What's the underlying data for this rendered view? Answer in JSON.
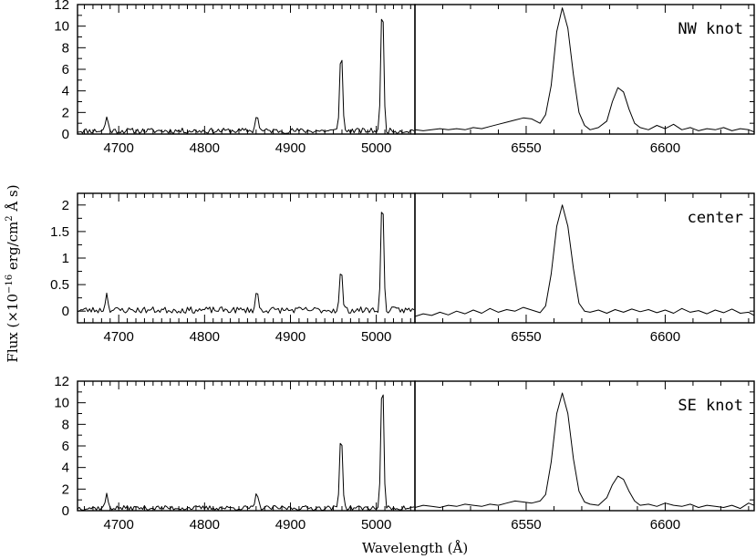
{
  "figure": {
    "xlabel": "Wavelength (Å)",
    "ylabel_prefix": "Flux (×10",
    "ylabel_exp": "−16",
    "ylabel_mid": " erg/cm",
    "ylabel_exp2": "2",
    "ylabel_suffix": " Å s)"
  },
  "chart_data": [
    {
      "type": "line",
      "region": "NW knot",
      "panel": "blue",
      "xlim": [
        4652,
        5045
      ],
      "ylim": [
        0,
        12
      ],
      "xticks": [
        4700,
        4800,
        4900,
        5000
      ],
      "yticks": [
        0,
        2,
        4,
        6,
        8,
        10,
        12
      ],
      "noise": 0.25,
      "baseline": 0.3,
      "seed": 11,
      "lines": [
        {
          "x": 4686,
          "y": 1.3
        },
        {
          "x": 4861,
          "y": 1.6
        },
        {
          "x": 4959,
          "y": 7.8
        },
        {
          "x": 5007,
          "y": 12.5
        }
      ]
    },
    {
      "type": "line",
      "region": "NW knot",
      "panel": "red",
      "label": "NW knot",
      "xlim": [
        6510,
        6632
      ],
      "ylim": [
        0,
        12
      ],
      "xticks": [
        6550,
        6600
      ],
      "yticks": [],
      "points": [
        [
          6510,
          0.4
        ],
        [
          6513,
          0.3
        ],
        [
          6516,
          0.4
        ],
        [
          6519,
          0.5
        ],
        [
          6522,
          0.4
        ],
        [
          6525,
          0.5
        ],
        [
          6528,
          0.4
        ],
        [
          6531,
          0.6
        ],
        [
          6534,
          0.5
        ],
        [
          6537,
          0.7
        ],
        [
          6540,
          0.9
        ],
        [
          6543,
          1.1
        ],
        [
          6546,
          1.3
        ],
        [
          6549,
          1.5
        ],
        [
          6552,
          1.4
        ],
        [
          6555,
          1.0
        ],
        [
          6557,
          1.8
        ],
        [
          6559,
          4.5
        ],
        [
          6561,
          9.5
        ],
        [
          6563,
          11.7
        ],
        [
          6565,
          9.8
        ],
        [
          6567,
          5.5
        ],
        [
          6569,
          2.0
        ],
        [
          6571,
          0.8
        ],
        [
          6573,
          0.4
        ],
        [
          6576,
          0.6
        ],
        [
          6579,
          1.2
        ],
        [
          6581,
          3.0
        ],
        [
          6583,
          4.3
        ],
        [
          6585,
          3.9
        ],
        [
          6587,
          2.3
        ],
        [
          6589,
          1.0
        ],
        [
          6591,
          0.6
        ],
        [
          6594,
          0.4
        ],
        [
          6597,
          0.8
        ],
        [
          6600,
          0.5
        ],
        [
          6603,
          0.9
        ],
        [
          6606,
          0.4
        ],
        [
          6609,
          0.6
        ],
        [
          6612,
          0.3
        ],
        [
          6615,
          0.5
        ],
        [
          6618,
          0.4
        ],
        [
          6621,
          0.6
        ],
        [
          6624,
          0.3
        ],
        [
          6627,
          0.5
        ],
        [
          6630,
          0.4
        ],
        [
          6632,
          0.2
        ]
      ]
    },
    {
      "type": "line",
      "region": "center",
      "panel": "blue",
      "xlim": [
        4652,
        5045
      ],
      "ylim": [
        -0.22,
        2.22
      ],
      "xticks": [
        4700,
        4800,
        4900,
        5000
      ],
      "yticks": [
        0,
        0.5,
        1,
        1.5,
        2
      ],
      "noise": 0.06,
      "baseline": 0.02,
      "seed": 23,
      "lines": [
        {
          "x": 4686,
          "y": 0.3
        },
        {
          "x": 4861,
          "y": 0.35
        },
        {
          "x": 4959,
          "y": 0.78
        },
        {
          "x": 5007,
          "y": 2.2
        }
      ]
    },
    {
      "type": "line",
      "region": "center",
      "panel": "red",
      "label": "center",
      "xlim": [
        6510,
        6632
      ],
      "ylim": [
        -0.22,
        2.22
      ],
      "xticks": [
        6550,
        6600
      ],
      "yticks": [],
      "points": [
        [
          6510,
          -0.1
        ],
        [
          6513,
          -0.05
        ],
        [
          6516,
          -0.08
        ],
        [
          6519,
          -0.02
        ],
        [
          6522,
          -0.07
        ],
        [
          6525,
          0.0
        ],
        [
          6528,
          -0.05
        ],
        [
          6531,
          0.02
        ],
        [
          6534,
          -0.04
        ],
        [
          6537,
          0.05
        ],
        [
          6540,
          -0.02
        ],
        [
          6543,
          0.03
        ],
        [
          6546,
          0.0
        ],
        [
          6549,
          0.07
        ],
        [
          6552,
          0.02
        ],
        [
          6555,
          -0.03
        ],
        [
          6557,
          0.1
        ],
        [
          6559,
          0.7
        ],
        [
          6561,
          1.6
        ],
        [
          6563,
          2.0
        ],
        [
          6565,
          1.6
        ],
        [
          6567,
          0.8
        ],
        [
          6569,
          0.15
        ],
        [
          6571,
          0.0
        ],
        [
          6573,
          -0.02
        ],
        [
          6576,
          0.02
        ],
        [
          6579,
          -0.04
        ],
        [
          6582,
          0.03
        ],
        [
          6585,
          -0.02
        ],
        [
          6588,
          0.04
        ],
        [
          6591,
          -0.01
        ],
        [
          6594,
          0.03
        ],
        [
          6597,
          -0.03
        ],
        [
          6600,
          0.02
        ],
        [
          6603,
          -0.04
        ],
        [
          6606,
          0.05
        ],
        [
          6609,
          -0.02
        ],
        [
          6612,
          0.01
        ],
        [
          6615,
          -0.05
        ],
        [
          6618,
          0.02
        ],
        [
          6621,
          -0.03
        ],
        [
          6624,
          0.04
        ],
        [
          6627,
          -0.04
        ],
        [
          6630,
          -0.02
        ],
        [
          6632,
          -0.08
        ]
      ]
    },
    {
      "type": "line",
      "region": "SE knot",
      "panel": "blue",
      "xlim": [
        4652,
        5045
      ],
      "ylim": [
        0,
        12
      ],
      "xticks": [
        4700,
        4800,
        4900,
        5000
      ],
      "yticks": [
        0,
        2,
        4,
        6,
        8,
        10,
        12
      ],
      "noise": 0.22,
      "baseline": 0.25,
      "seed": 37,
      "lines": [
        {
          "x": 4686,
          "y": 1.2
        },
        {
          "x": 4861,
          "y": 1.4
        },
        {
          "x": 4959,
          "y": 7.3
        },
        {
          "x": 5007,
          "y": 12.5
        }
      ]
    },
    {
      "type": "line",
      "region": "SE knot",
      "panel": "red",
      "label": "SE knot",
      "xlim": [
        6510,
        6632
      ],
      "ylim": [
        0,
        12
      ],
      "xticks": [
        6550,
        6600
      ],
      "yticks": [],
      "points": [
        [
          6510,
          0.3
        ],
        [
          6513,
          0.5
        ],
        [
          6516,
          0.4
        ],
        [
          6519,
          0.3
        ],
        [
          6522,
          0.5
        ],
        [
          6525,
          0.4
        ],
        [
          6528,
          0.6
        ],
        [
          6531,
          0.5
        ],
        [
          6534,
          0.4
        ],
        [
          6537,
          0.6
        ],
        [
          6540,
          0.5
        ],
        [
          6543,
          0.7
        ],
        [
          6546,
          0.9
        ],
        [
          6549,
          0.8
        ],
        [
          6552,
          0.7
        ],
        [
          6555,
          0.9
        ],
        [
          6557,
          1.5
        ],
        [
          6559,
          4.5
        ],
        [
          6561,
          9.0
        ],
        [
          6563,
          10.9
        ],
        [
          6565,
          9.0
        ],
        [
          6567,
          4.8
        ],
        [
          6569,
          1.8
        ],
        [
          6571,
          0.8
        ],
        [
          6573,
          0.6
        ],
        [
          6576,
          0.5
        ],
        [
          6579,
          1.2
        ],
        [
          6581,
          2.4
        ],
        [
          6583,
          3.2
        ],
        [
          6585,
          2.9
        ],
        [
          6587,
          1.8
        ],
        [
          6589,
          0.9
        ],
        [
          6591,
          0.5
        ],
        [
          6594,
          0.6
        ],
        [
          6597,
          0.4
        ],
        [
          6600,
          0.7
        ],
        [
          6603,
          0.5
        ],
        [
          6606,
          0.4
        ],
        [
          6609,
          0.6
        ],
        [
          6612,
          0.3
        ],
        [
          6615,
          0.5
        ],
        [
          6618,
          0.4
        ],
        [
          6621,
          0.3
        ],
        [
          6624,
          0.5
        ],
        [
          6627,
          0.2
        ],
        [
          6630,
          0.7
        ],
        [
          6632,
          0.5
        ]
      ]
    }
  ]
}
